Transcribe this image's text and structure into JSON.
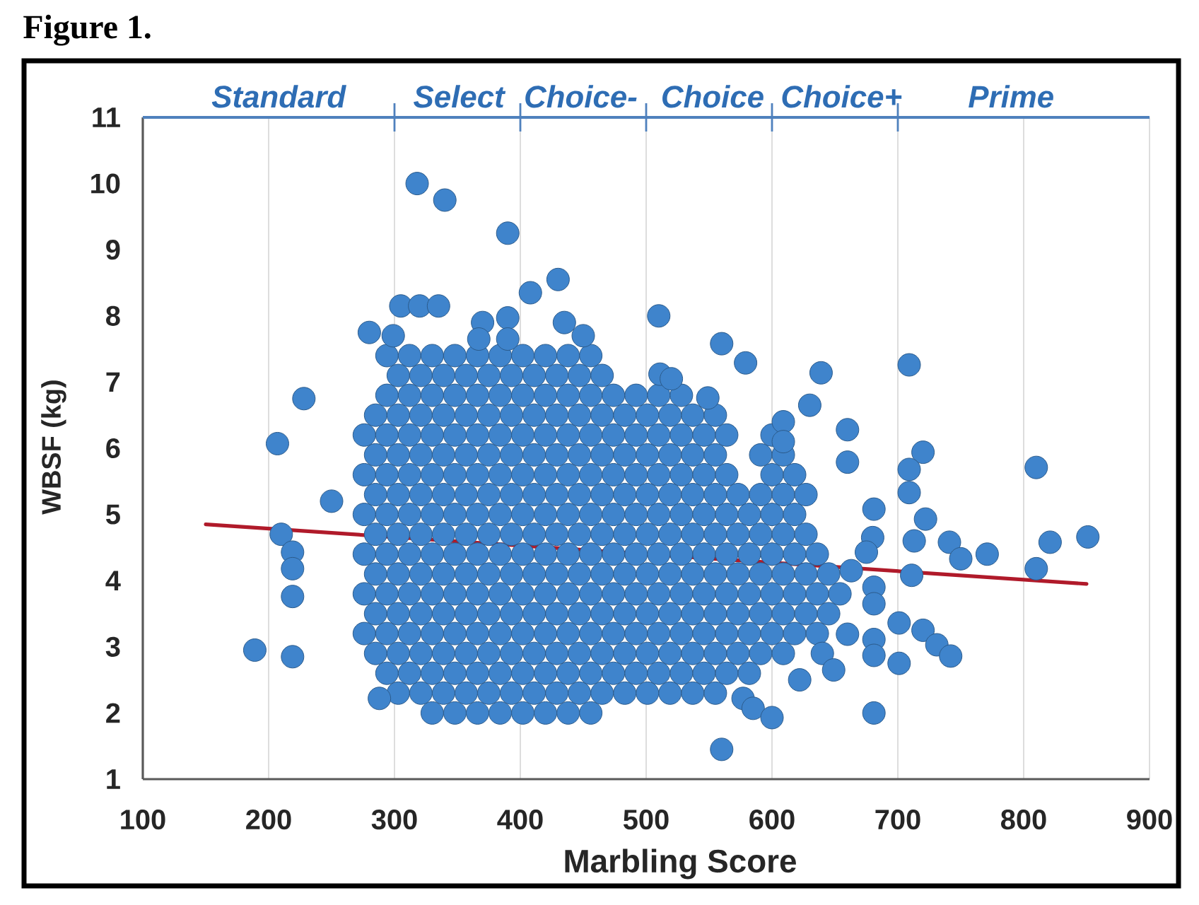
{
  "chart_data": {
    "type": "scatter",
    "title": "Figure 1.",
    "xlabel": "Marbling Score",
    "ylabel": "WBSF (kg)",
    "xlim": [
      100,
      900
    ],
    "xticks": [
      100,
      200,
      300,
      400,
      500,
      600,
      700,
      800,
      900
    ],
    "ylim": [
      1,
      11
    ],
    "yticks": [
      1,
      2,
      3,
      4,
      5,
      6,
      7,
      8,
      9,
      10,
      11
    ],
    "annotations": [
      "Standard",
      "Select",
      "Choice-",
      "Choice",
      "Choice+",
      "Prime"
    ],
    "grid": "x",
    "marker": "circle",
    "series": [
      {
        "color": "#3f84cc",
        "x": [
          330,
          348,
          366,
          384,
          402,
          420,
          438,
          456,
          303,
          321,
          339,
          357,
          375,
          393,
          411,
          429,
          447,
          465,
          483,
          501,
          519,
          537,
          555,
          294,
          312,
          330,
          348,
          366,
          384,
          402,
          420,
          438,
          456,
          474,
          492,
          510,
          528,
          546,
          564,
          582,
          285,
          303,
          321,
          339,
          357,
          375,
          393,
          411,
          429,
          447,
          465,
          483,
          501,
          519,
          537,
          555,
          573,
          591,
          609,
          276,
          294,
          312,
          330,
          348,
          366,
          384,
          402,
          420,
          438,
          456,
          474,
          492,
          510,
          528,
          546,
          564,
          582,
          600,
          618,
          636,
          285,
          303,
          321,
          339,
          357,
          375,
          393,
          411,
          429,
          447,
          465,
          483,
          501,
          519,
          537,
          555,
          573,
          591,
          609,
          627,
          645,
          276,
          294,
          312,
          330,
          348,
          366,
          384,
          402,
          420,
          438,
          456,
          474,
          492,
          510,
          528,
          546,
          564,
          582,
          600,
          618,
          636,
          654,
          285,
          303,
          321,
          339,
          357,
          375,
          393,
          411,
          429,
          447,
          465,
          483,
          501,
          519,
          537,
          555,
          573,
          591,
          609,
          627,
          645,
          276,
          294,
          312,
          330,
          348,
          366,
          384,
          402,
          420,
          438,
          456,
          474,
          492,
          510,
          528,
          546,
          564,
          582,
          600,
          618,
          636,
          285,
          303,
          321,
          339,
          357,
          375,
          393,
          411,
          429,
          447,
          465,
          483,
          501,
          519,
          537,
          555,
          573,
          591,
          609,
          627,
          276,
          294,
          312,
          330,
          348,
          366,
          384,
          402,
          420,
          438,
          456,
          474,
          492,
          510,
          528,
          546,
          564,
          582,
          600,
          618,
          285,
          303,
          321,
          339,
          357,
          375,
          393,
          411,
          429,
          447,
          465,
          483,
          501,
          519,
          537,
          555,
          573,
          591,
          609,
          627,
          276,
          294,
          312,
          330,
          348,
          366,
          384,
          402,
          420,
          438,
          456,
          474,
          492,
          510,
          528,
          546,
          564,
          600,
          618,
          285,
          303,
          321,
          339,
          357,
          375,
          393,
          411,
          429,
          447,
          465,
          483,
          501,
          519,
          537,
          555,
          591,
          609,
          276,
          294,
          312,
          330,
          348,
          366,
          384,
          402,
          420,
          438,
          456,
          474,
          492,
          510,
          528,
          546,
          564,
          600,
          285,
          303,
          321,
          339,
          357,
          375,
          393,
          411,
          429,
          447,
          465,
          483,
          501,
          519,
          537,
          555,
          294,
          312,
          330,
          348,
          366,
          384,
          402,
          420,
          438,
          456,
          474,
          492,
          510,
          528,
          303,
          321,
          339,
          357,
          375,
          393,
          411,
          429,
          447,
          465,
          294,
          312,
          330,
          348,
          366,
          384,
          402,
          420,
          438,
          456,
          318,
          340,
          390,
          430,
          408,
          305,
          320,
          335,
          280,
          299,
          370,
          390,
          435,
          450,
          367,
          390,
          510,
          511,
          520,
          560,
          579,
          639,
          709,
          549,
          630,
          660,
          609,
          609,
          660,
          720,
          709,
          810,
          709,
          681,
          722,
          713,
          680,
          741,
          750,
          771,
          821,
          851,
          810,
          711,
          675,
          681,
          681,
          663,
          660,
          681,
          701,
          720,
          731,
          742,
          701,
          681,
          640,
          622,
          649,
          681,
          560,
          577,
          585,
          600,
          228,
          207,
          250,
          210,
          219,
          219,
          219,
          189,
          219,
          288
        ],
        "values": [
          2,
          2,
          2,
          2,
          2,
          2,
          2,
          2,
          2.3,
          2.3,
          2.3,
          2.3,
          2.3,
          2.3,
          2.3,
          2.3,
          2.3,
          2.3,
          2.3,
          2.3,
          2.3,
          2.3,
          2.3,
          2.6,
          2.6,
          2.6,
          2.6,
          2.6,
          2.6,
          2.6,
          2.6,
          2.6,
          2.6,
          2.6,
          2.6,
          2.6,
          2.6,
          2.6,
          2.6,
          2.6,
          2.9,
          2.9,
          2.9,
          2.9,
          2.9,
          2.9,
          2.9,
          2.9,
          2.9,
          2.9,
          2.9,
          2.9,
          2.9,
          2.9,
          2.9,
          2.9,
          2.9,
          2.9,
          2.9,
          3.2,
          3.2,
          3.2,
          3.2,
          3.2,
          3.2,
          3.2,
          3.2,
          3.2,
          3.2,
          3.2,
          3.2,
          3.2,
          3.2,
          3.2,
          3.2,
          3.2,
          3.2,
          3.2,
          3.2,
          3.2,
          3.5,
          3.5,
          3.5,
          3.5,
          3.5,
          3.5,
          3.5,
          3.5,
          3.5,
          3.5,
          3.5,
          3.5,
          3.5,
          3.5,
          3.5,
          3.5,
          3.5,
          3.5,
          3.5,
          3.5,
          3.5,
          3.8,
          3.8,
          3.8,
          3.8,
          3.8,
          3.8,
          3.8,
          3.8,
          3.8,
          3.8,
          3.8,
          3.8,
          3.8,
          3.8,
          3.8,
          3.8,
          3.8,
          3.8,
          3.8,
          3.8,
          3.8,
          3.8,
          4.1,
          4.1,
          4.1,
          4.1,
          4.1,
          4.1,
          4.1,
          4.1,
          4.1,
          4.1,
          4.1,
          4.1,
          4.1,
          4.1,
          4.1,
          4.1,
          4.1,
          4.1,
          4.1,
          4.1,
          4.1,
          4.4,
          4.4,
          4.4,
          4.4,
          4.4,
          4.4,
          4.4,
          4.4,
          4.4,
          4.4,
          4.4,
          4.4,
          4.4,
          4.4,
          4.4,
          4.4,
          4.4,
          4.4,
          4.4,
          4.4,
          4.4,
          4.7,
          4.7,
          4.7,
          4.7,
          4.7,
          4.7,
          4.7,
          4.7,
          4.7,
          4.7,
          4.7,
          4.7,
          4.7,
          4.7,
          4.7,
          4.7,
          4.7,
          4.7,
          4.7,
          4.7,
          5,
          5,
          5,
          5,
          5,
          5,
          5,
          5,
          5,
          5,
          5,
          5,
          5,
          5,
          5,
          5,
          5,
          5,
          5,
          5,
          5.3,
          5.3,
          5.3,
          5.3,
          5.3,
          5.3,
          5.3,
          5.3,
          5.3,
          5.3,
          5.3,
          5.3,
          5.3,
          5.3,
          5.3,
          5.3,
          5.3,
          5.3,
          5.3,
          5.3,
          5.6,
          5.6,
          5.6,
          5.6,
          5.6,
          5.6,
          5.6,
          5.6,
          5.6,
          5.6,
          5.6,
          5.6,
          5.6,
          5.6,
          5.6,
          5.6,
          5.6,
          5.6,
          5.6,
          5.9,
          5.9,
          5.9,
          5.9,
          5.9,
          5.9,
          5.9,
          5.9,
          5.9,
          5.9,
          5.9,
          5.9,
          5.9,
          5.9,
          5.9,
          5.9,
          5.9,
          5.9,
          6.2,
          6.2,
          6.2,
          6.2,
          6.2,
          6.2,
          6.2,
          6.2,
          6.2,
          6.2,
          6.2,
          6.2,
          6.2,
          6.2,
          6.2,
          6.2,
          6.2,
          6.2,
          6.5,
          6.5,
          6.5,
          6.5,
          6.5,
          6.5,
          6.5,
          6.5,
          6.5,
          6.5,
          6.5,
          6.5,
          6.5,
          6.5,
          6.5,
          6.5,
          6.8,
          6.8,
          6.8,
          6.8,
          6.8,
          6.8,
          6.8,
          6.8,
          6.8,
          6.8,
          6.8,
          6.8,
          6.8,
          6.8,
          7.1,
          7.1,
          7.1,
          7.1,
          7.1,
          7.1,
          7.1,
          7.1,
          7.1,
          7.1,
          7.4,
          7.4,
          7.4,
          7.4,
          7.4,
          7.4,
          7.4,
          7.4,
          7.4,
          7.4,
          10.0,
          9.75,
          9.25,
          8.55,
          8.35,
          8.15,
          8.15,
          8.15,
          7.75,
          7.7,
          7.9,
          7.97,
          7.9,
          7.7,
          7.65,
          7.65,
          8.0,
          7.12,
          7.05,
          7.58,
          7.29,
          7.14,
          7.26,
          6.76,
          6.65,
          6.28,
          6.4,
          6.1,
          5.79,
          5.94,
          5.68,
          5.71,
          5.33,
          5.08,
          4.93,
          4.6,
          4.65,
          4.58,
          4.33,
          4.4,
          4.58,
          4.66,
          4.18,
          4.08,
          4.43,
          3.9,
          3.65,
          4.15,
          3.19,
          3.11,
          3.36,
          3.25,
          3.03,
          2.86,
          2.75,
          2.87,
          2.9,
          2.5,
          2.65,
          2.0,
          1.45,
          2.22,
          2.07,
          1.93,
          6.75,
          6.07,
          5.2,
          4.7,
          4.43,
          4.18,
          3.76,
          2.95,
          2.85,
          2.22
        ]
      },
      {
        "type": "line",
        "color": "#b01a2a",
        "marker": "none",
        "x": [
          150,
          850
        ],
        "values": [
          4.85,
          3.95
        ]
      }
    ]
  }
}
